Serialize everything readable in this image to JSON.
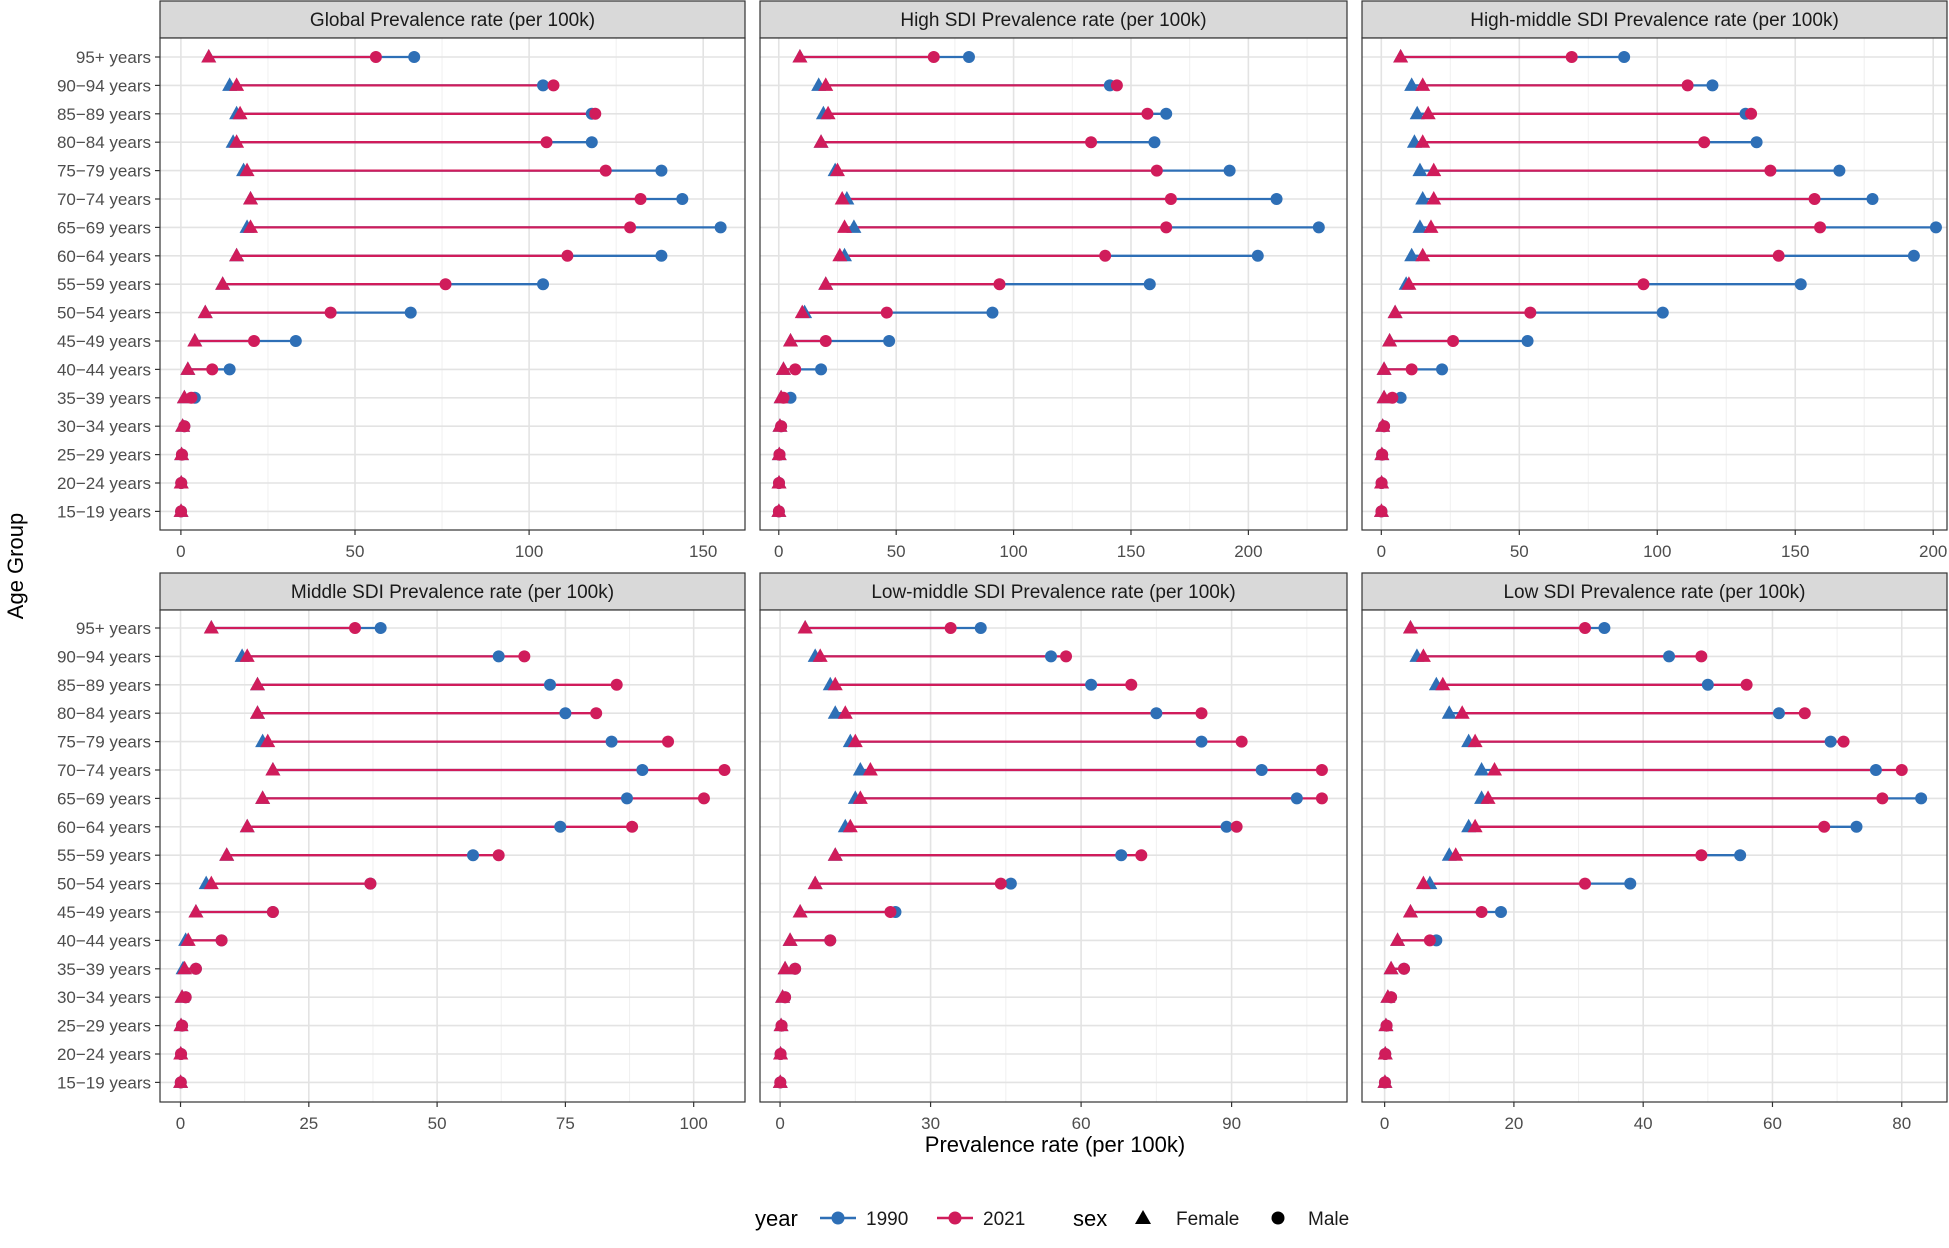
{
  "figure": {
    "xlabel": "Prevalence rate (per 100k)",
    "ylabel": "Age Group",
    "colors": {
      "1990": "#2e6fb6",
      "2021": "#d01c5b"
    },
    "legend": {
      "placement": "bottom",
      "year_title": "year",
      "year_items": [
        "1990",
        "2021"
      ],
      "sex_title": "sex",
      "sex_items": [
        "Female",
        "Male"
      ]
    }
  },
  "chart_data": [
    {
      "type": "dumbbell",
      "title": "Global Prevalence rate (per 100k)",
      "categories": [
        "95+ years",
        "90-94 years",
        "85-89 years",
        "80-84 years",
        "75-79 years",
        "70-74 years",
        "65-69 years",
        "60-64 years",
        "55-59 years",
        "50-54 years",
        "45-49 years",
        "40-44 years",
        "35-39 years",
        "30-34 years",
        "25-29 years",
        "20-24 years",
        "15-19 years"
      ],
      "xlim": [
        -6,
        162
      ],
      "xticks": [
        0,
        50,
        100,
        150
      ],
      "series": [
        {
          "year": "1990",
          "sex": "Female",
          "values": [
            8,
            14,
            16,
            15,
            18,
            20,
            19,
            16,
            12,
            7,
            4,
            2,
            1,
            0.5,
            0.2,
            0.1,
            0.05
          ]
        },
        {
          "year": "2021",
          "sex": "Female",
          "values": [
            8,
            16,
            17,
            16,
            19,
            20,
            20,
            16,
            12,
            7,
            4,
            2,
            1,
            0.5,
            0.2,
            0.1,
            0.05
          ]
        },
        {
          "year": "1990",
          "sex": "Male",
          "values": [
            67,
            104,
            118,
            118,
            138,
            144,
            155,
            138,
            104,
            66,
            33,
            14,
            4,
            1,
            0.3,
            0.1,
            0.05
          ]
        },
        {
          "year": "2021",
          "sex": "Male",
          "values": [
            56,
            107,
            119,
            105,
            122,
            132,
            129,
            111,
            76,
            43,
            21,
            9,
            3,
            1,
            0.3,
            0.1,
            0.05
          ]
        }
      ]
    },
    {
      "type": "dumbbell",
      "title": "High SDI Prevalence rate (per 100k)",
      "categories": [
        "95+ years",
        "90-94 years",
        "85-89 years",
        "80-84 years",
        "75-79 years",
        "70-74 years",
        "65-69 years",
        "60-64 years",
        "55-59 years",
        "50-54 years",
        "45-49 years",
        "40-44 years",
        "35-39 years",
        "30-34 years",
        "25-29 years",
        "20-24 years",
        "15-19 years"
      ],
      "xlim": [
        -8,
        242
      ],
      "xticks": [
        0,
        50,
        100,
        150,
        200
      ],
      "series": [
        {
          "year": "1990",
          "sex": "Female",
          "values": [
            9,
            17,
            19,
            18,
            24,
            29,
            32,
            28,
            20,
            11,
            5,
            2,
            1,
            0.5,
            0.2,
            0.1,
            0.05
          ]
        },
        {
          "year": "2021",
          "sex": "Female",
          "values": [
            9,
            20,
            21,
            18,
            25,
            27,
            28,
            26,
            20,
            10,
            5,
            2,
            1,
            0.5,
            0.2,
            0.1,
            0.05
          ]
        },
        {
          "year": "1990",
          "sex": "Male",
          "values": [
            81,
            141,
            165,
            160,
            192,
            212,
            230,
            204,
            158,
            91,
            47,
            18,
            5,
            1,
            0.3,
            0.1,
            0.05
          ]
        },
        {
          "year": "2021",
          "sex": "Male",
          "values": [
            66,
            144,
            157,
            133,
            161,
            167,
            165,
            139,
            94,
            46,
            20,
            7,
            2,
            1,
            0.3,
            0.1,
            0.05
          ]
        }
      ]
    },
    {
      "type": "dumbbell",
      "title": "High-middle SDI Prevalence rate (per 100k)",
      "categories": [
        "95+ years",
        "90-94 years",
        "85-89 years",
        "80-84 years",
        "75-79 years",
        "70-74 years",
        "65-69 years",
        "60-64 years",
        "55-59 years",
        "50-54 years",
        "45-49 years",
        "40-44 years",
        "35-39 years",
        "30-34 years",
        "25-29 years",
        "20-24 years",
        "15-19 years"
      ],
      "xlim": [
        -7,
        205
      ],
      "xticks": [
        0,
        50,
        100,
        150,
        200
      ],
      "series": [
        {
          "year": "1990",
          "sex": "Female",
          "values": [
            7,
            11,
            13,
            12,
            14,
            15,
            14,
            11,
            9,
            5,
            3,
            1,
            1,
            0.5,
            0.2,
            0.1,
            0.05
          ]
        },
        {
          "year": "2021",
          "sex": "Female",
          "values": [
            7,
            15,
            17,
            15,
            19,
            19,
            18,
            15,
            10,
            5,
            3,
            1,
            1,
            0.5,
            0.2,
            0.1,
            0.05
          ]
        },
        {
          "year": "1990",
          "sex": "Male",
          "values": [
            88,
            120,
            132,
            136,
            166,
            178,
            201,
            193,
            152,
            102,
            53,
            22,
            7,
            1,
            0.3,
            0.1,
            0.05
          ]
        },
        {
          "year": "2021",
          "sex": "Male",
          "values": [
            69,
            111,
            134,
            117,
            141,
            157,
            159,
            144,
            95,
            54,
            26,
            11,
            4,
            1,
            0.3,
            0.1,
            0.05
          ]
        }
      ]
    },
    {
      "type": "dumbbell",
      "title": "Middle SDI Prevalence rate (per 100k)",
      "categories": [
        "95+ years",
        "90-94 years",
        "85-89 years",
        "80-84 years",
        "75-79 years",
        "70-74 years",
        "65-69 years",
        "60-64 years",
        "55-59 years",
        "50-54 years",
        "45-49 years",
        "40-44 years",
        "35-39 years",
        "30-34 years",
        "25-29 years",
        "20-24 years",
        "15-19 years"
      ],
      "xlim": [
        -4,
        110
      ],
      "xticks": [
        0,
        25,
        50,
        75,
        100
      ],
      "series": [
        {
          "year": "1990",
          "sex": "Female",
          "values": [
            6,
            12,
            15,
            15,
            16,
            18,
            16,
            13,
            9,
            5,
            3,
            1,
            0.5,
            0.3,
            0.1,
            0.05,
            0.02
          ]
        },
        {
          "year": "2021",
          "sex": "Female",
          "values": [
            6,
            13,
            15,
            15,
            17,
            18,
            16,
            13,
            9,
            6,
            3,
            1.5,
            0.8,
            0.3,
            0.1,
            0.05,
            0.02
          ]
        },
        {
          "year": "1990",
          "sex": "Male",
          "values": [
            39,
            62,
            72,
            75,
            84,
            90,
            87,
            74,
            57,
            37,
            18,
            8,
            3,
            1,
            0.3,
            0.1,
            0.05
          ]
        },
        {
          "year": "2021",
          "sex": "Male",
          "values": [
            34,
            67,
            85,
            81,
            95,
            106,
            102,
            88,
            62,
            37,
            18,
            8,
            3,
            1,
            0.3,
            0.1,
            0.05
          ]
        }
      ]
    },
    {
      "type": "dumbbell",
      "title": "Low-middle SDI Prevalence rate (per 100k)",
      "categories": [
        "95+ years",
        "90-94 years",
        "85-89 years",
        "80-84 years",
        "75-79 years",
        "70-74 years",
        "65-69 years",
        "60-64 years",
        "55-59 years",
        "50-54 years",
        "45-49 years",
        "40-44 years",
        "35-39 years",
        "30-34 years",
        "25-29 years",
        "20-24 years",
        "15-19 years"
      ],
      "xlim": [
        -4,
        113
      ],
      "xticks": [
        0,
        30,
        60,
        90
      ],
      "series": [
        {
          "year": "1990",
          "sex": "Female",
          "values": [
            5,
            7,
            10,
            11,
            14,
            16,
            15,
            13,
            11,
            7,
            4,
            2,
            1,
            0.5,
            0.2,
            0.1,
            0.05
          ]
        },
        {
          "year": "2021",
          "sex": "Female",
          "values": [
            5,
            8,
            11,
            13,
            15,
            18,
            16,
            14,
            11,
            7,
            4,
            2,
            1,
            0.5,
            0.2,
            0.1,
            0.05
          ]
        },
        {
          "year": "1990",
          "sex": "Male",
          "values": [
            40,
            54,
            62,
            75,
            84,
            96,
            103,
            89,
            68,
            46,
            23,
            10,
            3,
            1,
            0.3,
            0.1,
            0.05
          ]
        },
        {
          "year": "2021",
          "sex": "Male",
          "values": [
            34,
            57,
            70,
            84,
            92,
            108,
            108,
            91,
            72,
            44,
            22,
            10,
            3,
            1,
            0.3,
            0.1,
            0.05
          ]
        }
      ]
    },
    {
      "type": "dumbbell",
      "title": "Low SDI Prevalence rate (per 100k)",
      "categories": [
        "95+ years",
        "90-94 years",
        "85-89 years",
        "80-84 years",
        "75-79 years",
        "70-74 years",
        "65-69 years",
        "60-64 years",
        "55-59 years",
        "50-54 years",
        "45-49 years",
        "40-44 years",
        "35-39 years",
        "30-34 years",
        "25-29 years",
        "20-24 years",
        "15-19 years"
      ],
      "xlim": [
        -3.5,
        87
      ],
      "xticks": [
        0,
        20,
        40,
        60,
        80
      ],
      "series": [
        {
          "year": "1990",
          "sex": "Female",
          "values": [
            4,
            5,
            8,
            10,
            13,
            15,
            15,
            13,
            10,
            7,
            4,
            2,
            1,
            0.5,
            0.2,
            0.1,
            0.05
          ]
        },
        {
          "year": "2021",
          "sex": "Female",
          "values": [
            4,
            6,
            9,
            12,
            14,
            17,
            16,
            14,
            11,
            6,
            4,
            2,
            1,
            0.5,
            0.2,
            0.1,
            0.05
          ]
        },
        {
          "year": "1990",
          "sex": "Male",
          "values": [
            34,
            44,
            50,
            61,
            69,
            76,
            83,
            73,
            55,
            38,
            18,
            8,
            3,
            1,
            0.3,
            0.1,
            0.05
          ]
        },
        {
          "year": "2021",
          "sex": "Male",
          "values": [
            31,
            49,
            56,
            65,
            71,
            80,
            77,
            68,
            49,
            31,
            15,
            7,
            3,
            1,
            0.3,
            0.1,
            0.05
          ]
        }
      ]
    }
  ]
}
